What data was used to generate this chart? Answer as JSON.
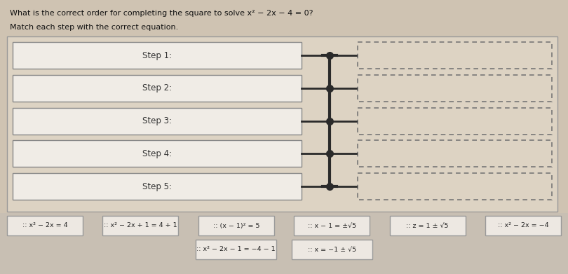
{
  "title": "What is the correct order for completing the square to solve x² − 2x − 4 = 0?",
  "subtitle": "Match each step with the correct equation.",
  "bg_color": "#cfc3b2",
  "panel_bg": "#ddd3c3",
  "box_fill": "#f0ece6",
  "box_edge": "#888888",
  "dash_fill": "#ddd3c3",
  "dash_edge": "#777777",
  "connector_color": "#2a2a2a",
  "chip_bg": "#c8bfb3",
  "chip_fill": "#ede8e2",
  "chip_edge": "#999999",
  "step_labels": [
    "Step 1:",
    "Step 2:",
    "Step 3:",
    "Step 4:",
    "Step 5:"
  ],
  "answer_chips_row1": [
    ":: x² − 2x = 4",
    ":: x² − 2x + 1 = 4 + 1",
    ":: (x − 1)² = 5",
    ":: x − 1 = ±√5",
    ":: z = 1 ± √5",
    ":: x² − 2x = −4"
  ],
  "answer_chips_row2": [
    ":: x² − 2x − 1 = −4 − 1",
    ":: x = −1 ± √5"
  ]
}
